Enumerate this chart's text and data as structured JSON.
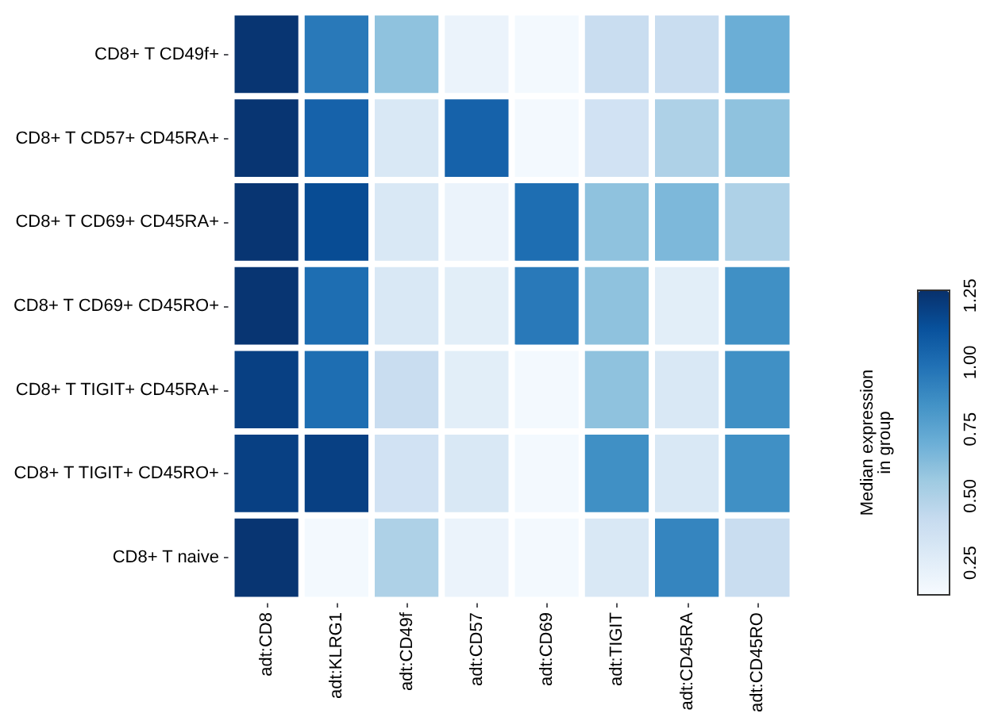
{
  "chart_data": {
    "type": "heatmap",
    "categories": [
      "adt:CD8",
      "adt:KLRG1",
      "adt:CD49f",
      "adt:CD57",
      "adt:CD69",
      "adt:TIGIT",
      "adt:CD45RA",
      "adt:CD45RO"
    ],
    "y_categories": [
      "CD8+ T CD49f+",
      "CD8+ T CD57+ CD45RA+",
      "CD8+ T CD69+ CD45RA+",
      "CD8+ T CD69+ CD45RO+",
      "CD8+ T TIGIT+ CD45RA+",
      "CD8+ T TIGIT+ CD45RO+",
      "CD8+ T naive"
    ],
    "cells": [
      [
        1.25,
        0.95,
        0.6,
        0.2,
        0.15,
        0.4,
        0.4,
        0.7
      ],
      [
        1.25,
        1.05,
        0.3,
        1.05,
        0.15,
        0.35,
        0.5,
        0.6
      ],
      [
        1.25,
        1.15,
        0.3,
        0.2,
        1.0,
        0.6,
        0.65,
        0.5
      ],
      [
        1.25,
        1.0,
        0.3,
        0.25,
        0.95,
        0.6,
        0.25,
        0.85
      ],
      [
        1.2,
        1.0,
        0.4,
        0.25,
        0.15,
        0.6,
        0.3,
        0.85
      ],
      [
        1.2,
        1.2,
        0.35,
        0.3,
        0.15,
        0.85,
        0.3,
        0.85
      ],
      [
        1.25,
        0.15,
        0.5,
        0.2,
        0.15,
        0.3,
        0.9,
        0.4
      ]
    ],
    "clabel": "Median expression\nin group",
    "clim": [
      0.13,
      1.27
    ],
    "cticks": [
      0.25,
      {
        "value": 0.5,
        "label": "0.50"
      },
      0.75,
      {
        "value": 1.0,
        "label": "1.00"
      },
      1.25
    ]
  }
}
